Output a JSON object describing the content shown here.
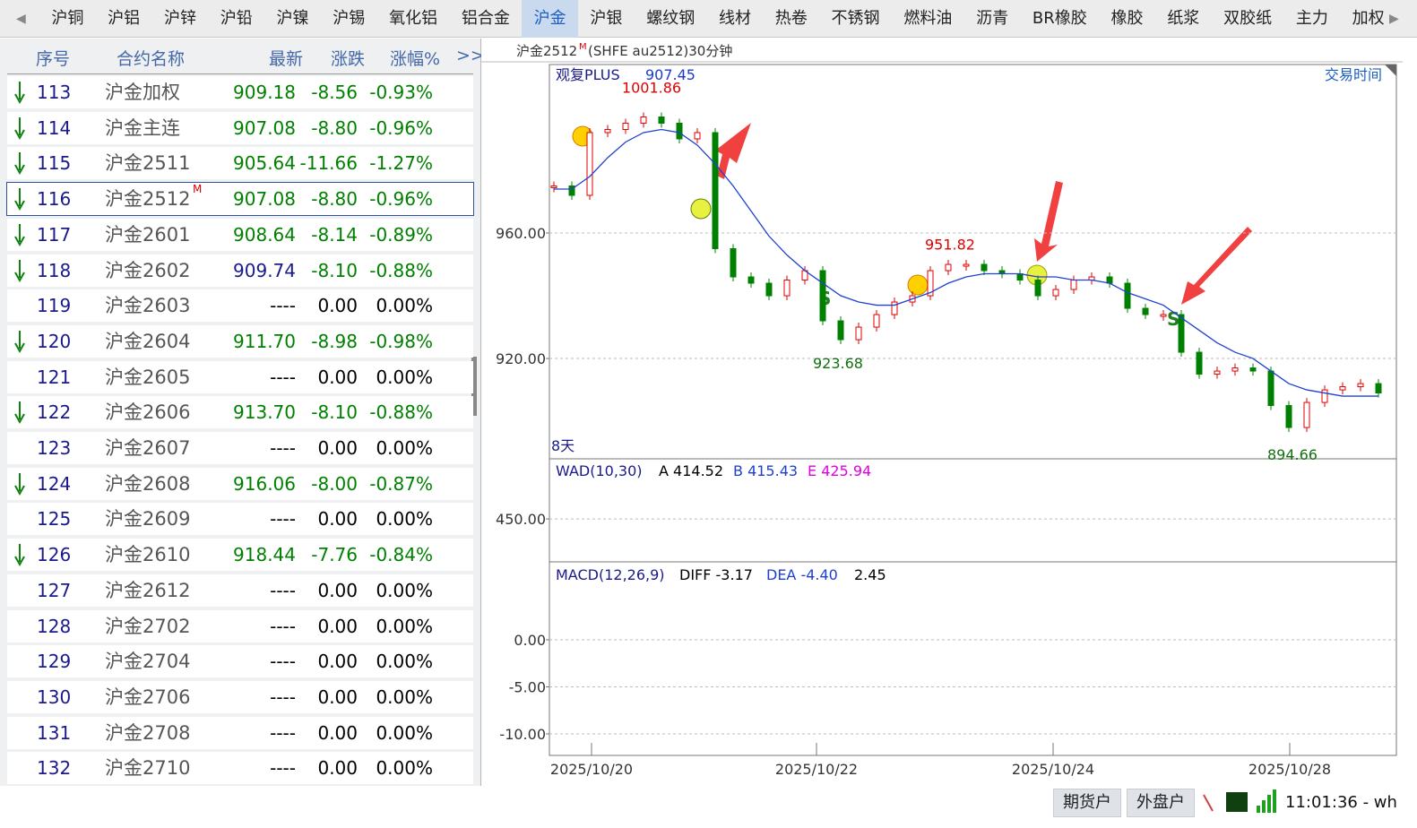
{
  "tabs": {
    "items": [
      "沪铜",
      "沪铝",
      "沪锌",
      "沪铅",
      "沪镍",
      "沪锡",
      "氧化铝",
      "铝合金",
      "沪金",
      "沪银",
      "螺纹钢",
      "线材",
      "热卷",
      "不锈钢",
      "燃料油",
      "沥青",
      "BR橡胶",
      "橡胶",
      "纸浆",
      "双胶纸",
      "主力",
      "加权"
    ],
    "active": 8
  },
  "table": {
    "headers": [
      "序号",
      "合约名称",
      "最新",
      "涨跌",
      "涨幅%",
      ">>"
    ],
    "rows": [
      {
        "seq": "113",
        "trend": "down",
        "name": "沪金加权",
        "last": "909.18",
        "change": "-8.56",
        "pct": "-0.93%",
        "last_color": "#008000"
      },
      {
        "seq": "114",
        "trend": "down",
        "name": "沪金主连",
        "last": "907.08",
        "change": "-8.80",
        "pct": "-0.96%",
        "last_color": "#008000"
      },
      {
        "seq": "115",
        "trend": "down",
        "name": "沪金2511",
        "last": "905.64",
        "change": "-11.66",
        "pct": "-1.27%",
        "last_color": "#008000"
      },
      {
        "seq": "116",
        "trend": "down",
        "name": "沪金2512",
        "mark": "M",
        "selected": true,
        "last": "907.08",
        "change": "-8.80",
        "pct": "-0.96%",
        "last_color": "#008000"
      },
      {
        "seq": "117",
        "trend": "down",
        "name": "沪金2601",
        "last": "908.64",
        "change": "-8.14",
        "pct": "-0.89%",
        "last_color": "#008000"
      },
      {
        "seq": "118",
        "trend": "down",
        "name": "沪金2602",
        "last": "909.74",
        "change": "-8.10",
        "pct": "-0.88%",
        "last_color": "#1a1a8c"
      },
      {
        "seq": "119",
        "trend": "flat",
        "name": "沪金2603",
        "last": "----",
        "change": "0.00",
        "pct": "0.00%",
        "last_color": "#000000"
      },
      {
        "seq": "120",
        "trend": "down",
        "name": "沪金2604",
        "last": "911.70",
        "change": "-8.98",
        "pct": "-0.98%",
        "last_color": "#008000"
      },
      {
        "seq": "121",
        "trend": "flat",
        "name": "沪金2605",
        "last": "----",
        "change": "0.00",
        "pct": "0.00%",
        "last_color": "#000000"
      },
      {
        "seq": "122",
        "trend": "down",
        "name": "沪金2606",
        "last": "913.70",
        "change": "-8.10",
        "pct": "-0.88%",
        "last_color": "#008000"
      },
      {
        "seq": "123",
        "trend": "flat",
        "name": "沪金2607",
        "last": "----",
        "change": "0.00",
        "pct": "0.00%",
        "last_color": "#000000"
      },
      {
        "seq": "124",
        "trend": "down",
        "name": "沪金2608",
        "last": "916.06",
        "change": "-8.00",
        "pct": "-0.87%",
        "last_color": "#008000"
      },
      {
        "seq": "125",
        "trend": "flat",
        "name": "沪金2609",
        "last": "----",
        "change": "0.00",
        "pct": "0.00%",
        "last_color": "#000000"
      },
      {
        "seq": "126",
        "trend": "down",
        "name": "沪金2610",
        "last": "918.44",
        "change": "-7.76",
        "pct": "-0.84%",
        "last_color": "#008000"
      },
      {
        "seq": "127",
        "trend": "flat",
        "name": "沪金2612",
        "last": "----",
        "change": "0.00",
        "pct": "0.00%",
        "last_color": "#000000"
      },
      {
        "seq": "128",
        "trend": "flat",
        "name": "沪金2702",
        "last": "----",
        "change": "0.00",
        "pct": "0.00%",
        "last_color": "#000000"
      },
      {
        "seq": "129",
        "trend": "flat",
        "name": "沪金2704",
        "last": "----",
        "change": "0.00",
        "pct": "0.00%",
        "last_color": "#000000"
      },
      {
        "seq": "130",
        "trend": "flat",
        "name": "沪金2706",
        "last": "----",
        "change": "0.00",
        "pct": "0.00%",
        "last_color": "#000000"
      },
      {
        "seq": "131",
        "trend": "flat",
        "name": "沪金2708",
        "last": "----",
        "change": "0.00",
        "pct": "0.00%",
        "last_color": "#000000"
      },
      {
        "seq": "132",
        "trend": "flat",
        "name": "沪金2710",
        "last": "----",
        "change": "0.00",
        "pct": "0.00%",
        "last_color": "#000000"
      }
    ]
  },
  "chart_data": [
    {
      "type": "candlestick",
      "title": "沪金2512",
      "title_mark": "M",
      "subtitle": "(SHFE au2512)30分钟",
      "indicator": "观复PLUS",
      "indicator_value": "907.45",
      "right_label": "交易时间",
      "span_label": "8天",
      "ylim": [
        888.6,
        1013.7
      ],
      "yticks": [
        {
          "value": 960,
          "label": "960.00"
        },
        {
          "value": 920,
          "label": "920.00"
        }
      ],
      "grid": true,
      "up_color": "#e00000",
      "down_color": "#008000",
      "ma_color": "#2040d0",
      "close": [
        975,
        972,
        992,
        993,
        995,
        997,
        995,
        990,
        992,
        955,
        946,
        944,
        940,
        945,
        948,
        932,
        926,
        930,
        934,
        938,
        940,
        948,
        950,
        950,
        948,
        947,
        945,
        940,
        942,
        945,
        946,
        944,
        936,
        934,
        934,
        922,
        915,
        916,
        917,
        916,
        905,
        898,
        906,
        910,
        911,
        912,
        909
      ],
      "ma": [
        974,
        974,
        978,
        984,
        989,
        992,
        993,
        992,
        988,
        982,
        975,
        967,
        959,
        953,
        948,
        944,
        940,
        938,
        937,
        937,
        939,
        941,
        944,
        946,
        947,
        947,
        947,
        946,
        946,
        945,
        945,
        944,
        941,
        939,
        937,
        933,
        929,
        925,
        922,
        920,
        916,
        912,
        910,
        909,
        908,
        908,
        908
      ],
      "highs": [
        1001.86,
        951.82
      ],
      "lows": [
        923.68,
        894.66
      ],
      "x_labels": [
        "2025/10/20",
        "2025/10/22",
        "2025/10/24",
        "2025/10/28"
      ]
    },
    {
      "type": "line",
      "title": "WAD(10,30)",
      "legend": [
        "A 414.52",
        "B 415.43",
        "E 425.94"
      ],
      "legend_colors": [
        "#000000",
        "#2040d0",
        "#e000e0"
      ],
      "ylim": [
        400,
        520
      ],
      "yticks": [
        {
          "value": 450,
          "label": "450.00"
        }
      ],
      "grid": true
    },
    {
      "type": "bar",
      "title": "MACD(12,26,9)",
      "legend": [
        "DIFF -3.17",
        "DEA -4.40",
        "2.45"
      ],
      "legend_colors": [
        "#000000",
        "#2040d0",
        "#000000"
      ],
      "ylim": [
        -12.29,
        8.19
      ],
      "yticks": [
        {
          "value": 0,
          "label": "0.00"
        },
        {
          "value": -5,
          "label": "-5.00"
        },
        {
          "value": -10,
          "label": "-10.00"
        }
      ],
      "grid": true
    }
  ],
  "status": {
    "buttons": [
      "期货户",
      "外盘户"
    ],
    "time": "11:01:36 - wh"
  }
}
